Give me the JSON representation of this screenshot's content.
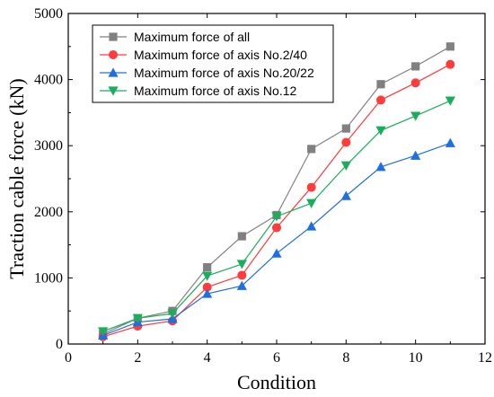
{
  "chart_data": {
    "type": "line",
    "title": "",
    "xlabel": "Condition",
    "ylabel": "Traction cable force (kN)",
    "xlim": [
      0,
      12
    ],
    "ylim": [
      0,
      5000
    ],
    "xticks": [
      0,
      2,
      4,
      6,
      8,
      10,
      12
    ],
    "yticks": [
      0,
      1000,
      2000,
      3000,
      4000,
      5000
    ],
    "grid": false,
    "legend_position": "top-left",
    "x": [
      1,
      2,
      3,
      4,
      5,
      6,
      7,
      8,
      9,
      10,
      11
    ],
    "series": [
      {
        "name": "Maximum force of all",
        "color": "#808080",
        "marker": "square",
        "values": [
          150,
          390,
          500,
          1160,
          1630,
          1950,
          2950,
          3260,
          3930,
          4200,
          4500
        ]
      },
      {
        "name": "Maximum force of axis No.2/40",
        "color": "#ff3b3b",
        "marker": "circle",
        "values": [
          110,
          270,
          350,
          860,
          1040,
          1760,
          2370,
          3050,
          3690,
          3950,
          4230
        ]
      },
      {
        "name": "Maximum force of axis No.20/22",
        "color": "#1f6fe0",
        "marker": "triangle-up",
        "values": [
          130,
          330,
          380,
          760,
          880,
          1370,
          1780,
          2240,
          2680,
          2850,
          3040
        ]
      },
      {
        "name": "Maximum force of axis No.12",
        "color": "#1aae5a",
        "marker": "triangle-down",
        "values": [
          190,
          390,
          460,
          1030,
          1210,
          1930,
          2130,
          2700,
          3230,
          3450,
          3680
        ]
      }
    ]
  }
}
